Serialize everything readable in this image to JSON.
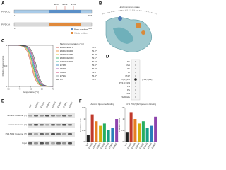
{
  "panels": [
    "A",
    "B",
    "C",
    "D",
    "E",
    "F"
  ],
  "domain_map": {
    "rows": [
      {
        "name": "PIP5K1C",
        "ends": [
          "1",
          "668"
        ]
      },
      {
        "name": "PIP5K1A",
        "ends": [
          "1",
          "562"
        ]
      }
    ],
    "sites": [
      "E845",
      "E842",
      "E791"
    ],
    "legend": [
      "Basic residues",
      "Acidic residues"
    ]
  },
  "structure": {
    "label": "Lipid membrane plane"
  },
  "melting": {
    "type": "line",
    "title": "Melting temperature (Tm)",
    "xlabel": "Temperature (°C)",
    "ylabel": "Relative fluorescence",
    "xlim": [
      30,
      70
    ],
    "ylim": [
      0,
      1
    ],
    "xticks": [
      30,
      40,
      50,
      60,
      70
    ],
    "yticks": [
      0,
      0.5,
      1
    ],
    "series": [
      {
        "name": "E845K/E847K",
        "color": "#c0392b",
        "tm": 50.6,
        "tm_label": "50.6°"
      },
      {
        "name": "E842A/D846R",
        "color": "#e67e22",
        "tm": 51.2,
        "tm_label": "51.2°"
      },
      {
        "name": "E844R/K848E",
        "color": "#d4ac0d",
        "tm": 51.8,
        "tm_label": "51.8°"
      },
      {
        "name": "E842Q/E845Q",
        "color": "#27ae60",
        "tm": 52.1,
        "tm_label": "52.1°"
      },
      {
        "name": "E791R/E795R",
        "color": "#16a085",
        "tm": 52.5,
        "tm_label": "52.5°"
      },
      {
        "name": "E748K",
        "color": "#2980b9",
        "tm": 53.0,
        "tm_label": "53.0°"
      },
      {
        "name": "E843E",
        "color": "#8e44ad",
        "tm": 53.4,
        "tm_label": "53.4°"
      },
      {
        "name": "K848A",
        "color": "#c2185b",
        "tm": 53.9,
        "tm_label": "53.9°"
      },
      {
        "name": "E790A",
        "color": "#7f8c8d",
        "tm": 54.3,
        "tm_label": "54.3°"
      },
      {
        "name": "WT",
        "color": "#222222",
        "tm": 55.0,
        "tm_label": "55.0°"
      }
    ]
  },
  "lipid_strip": {
    "labels": [
      "PC",
      "Chol",
      "PA",
      "PI",
      "PI4P",
      "PI(4,5)P2",
      "PI(3,4,5)P3",
      "PS",
      "PE",
      "SM",
      "Sulfatide"
    ],
    "side_label": "[PI(4,5)P2]"
  },
  "blot": {
    "lanes": [
      "WT",
      "E845K",
      "E842A",
      "E844R",
      "E842Q",
      "E791R",
      "E748K",
      "E843E"
    ],
    "rows": [
      "Anionic liposome (P)",
      "Anionic liposome (S)",
      "PI(4,5)P2 liposome (P)",
      "Input"
    ]
  },
  "binding": [
    {
      "type": "bar",
      "title": "Anionic liposome binding",
      "ylabel": "Fraction bound",
      "ylim": [
        0,
        1.5
      ],
      "yticks": [
        0,
        0.5,
        1,
        1.5
      ],
      "categories": [
        "WT",
        "E845K",
        "E842A",
        "E844R",
        "E842Q",
        "E791R",
        "E748K",
        "E843E"
      ],
      "colors": [
        "#222222",
        "#c0392b",
        "#e67e22",
        "#d4ac0d",
        "#27ae60",
        "#16a085",
        "#2980b9",
        "#8e44ad"
      ],
      "values": [
        0.3,
        1.2,
        0.9,
        0.7,
        0.8,
        0.5,
        0.6,
        1.0
      ]
    },
    {
      "type": "bar",
      "title": "4 % PI(4,5)P2 liposome binding",
      "ylabel": "Fraction bound",
      "ylim": [
        0,
        1.5
      ],
      "yticks": [
        0,
        0.5,
        1,
        1.5
      ],
      "categories": [
        "WT",
        "E845K",
        "E842A",
        "E844R",
        "E842Q",
        "E791R",
        "E748K",
        "E843E"
      ],
      "colors": [
        "#222222",
        "#c0392b",
        "#e67e22",
        "#d4ac0d",
        "#27ae60",
        "#16a085",
        "#2980b9",
        "#8e44ad"
      ],
      "values": [
        0.4,
        1.3,
        1.0,
        0.8,
        0.9,
        0.6,
        0.7,
        1.1
      ]
    }
  ]
}
